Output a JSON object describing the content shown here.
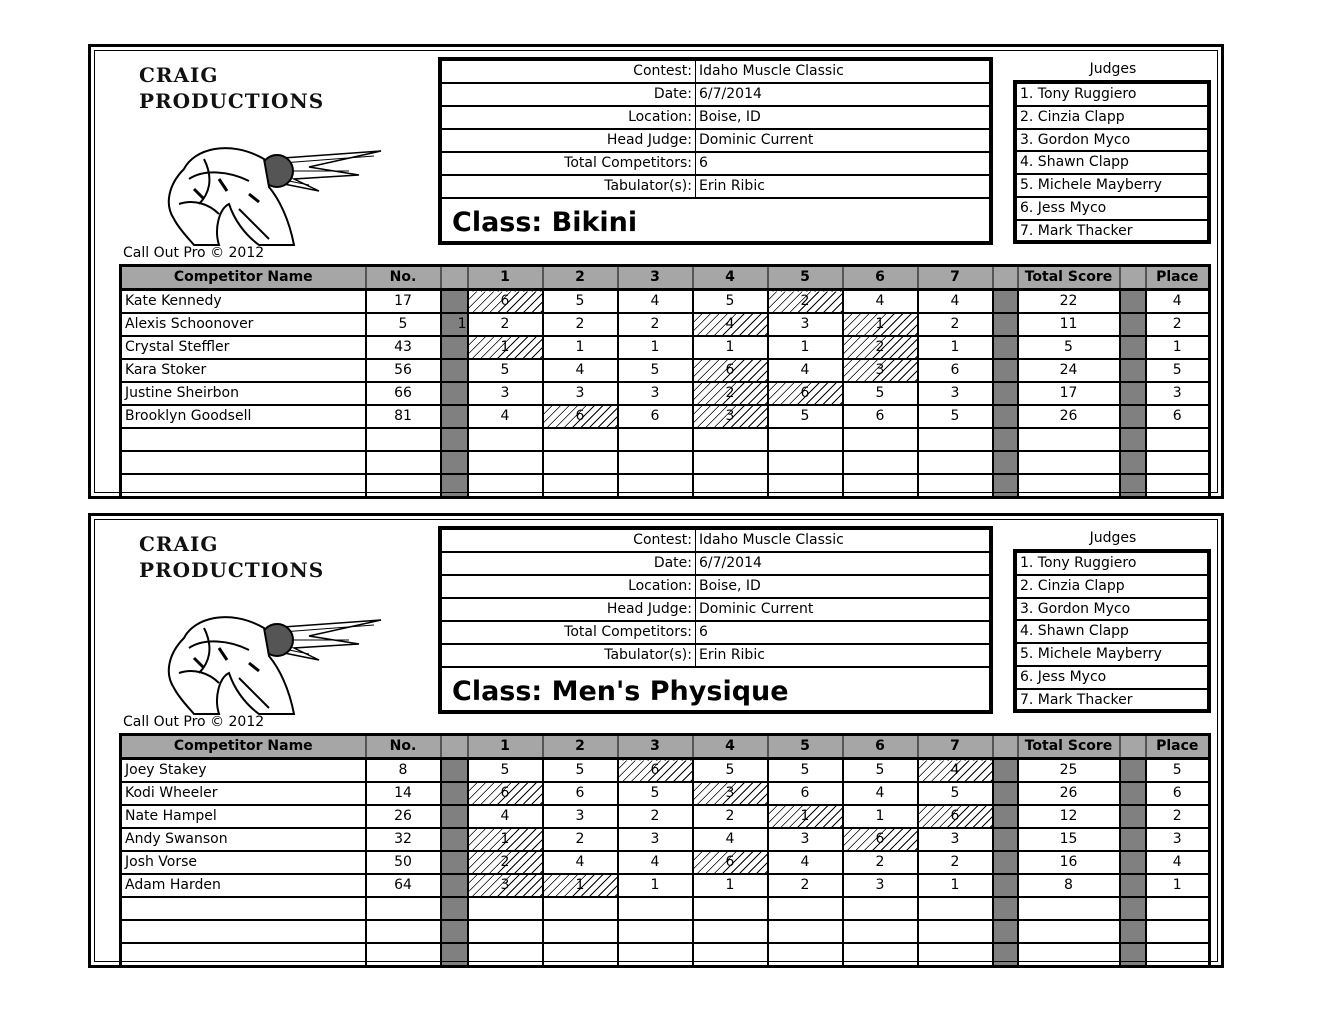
{
  "logo": {
    "line1": "CRAIG",
    "line2": "PRODUCTIONS"
  },
  "copyright": "Call Out Pro © 2012",
  "info_labels": [
    "Contest:",
    "Date:",
    "Location:",
    "Head Judge:",
    "Total Competitors:",
    "Tabulator(s):"
  ],
  "judges_title": "Judges",
  "judges": [
    "1.  Tony Ruggiero",
    "2.  Cinzia Clapp",
    "3.  Gordon Myco",
    "4.  Shawn Clapp",
    "5.  Michele Mayberry",
    "6.  Jess Myco",
    "7.  Mark Thacker"
  ],
  "columns": [
    "Competitor Name",
    "No.",
    "",
    "1",
    "2",
    "3",
    "4",
    "5",
    "6",
    "7",
    "",
    "Total Score",
    "",
    "Place"
  ],
  "sheets": [
    {
      "info_values": [
        "Idaho Muscle Classic",
        "6/7/2014",
        "Boise, ID",
        "Dominic Current",
        "6",
        "Erin Ribic"
      ],
      "class_label": "Class:  Bikini",
      "rows": [
        {
          "name": "Kate Kennedy",
          "no": "17",
          "mark": "",
          "scores": [
            "6",
            "5",
            "4",
            "5",
            "2",
            "4",
            "4"
          ],
          "dropped": [
            0,
            4
          ],
          "total": "22",
          "place": "4"
        },
        {
          "name": "Alexis Schoonover",
          "no": "5",
          "mark": "1",
          "scores": [
            "2",
            "2",
            "2",
            "4",
            "3",
            "1",
            "2"
          ],
          "dropped": [
            3,
            5
          ],
          "total": "11",
          "place": "2"
        },
        {
          "name": "Crystal Steffler",
          "no": "43",
          "mark": "",
          "scores": [
            "1",
            "1",
            "1",
            "1",
            "1",
            "2",
            "1"
          ],
          "dropped": [
            0,
            5
          ],
          "total": "5",
          "place": "1"
        },
        {
          "name": "Kara Stoker",
          "no": "56",
          "mark": "",
          "scores": [
            "5",
            "4",
            "5",
            "6",
            "4",
            "3",
            "6"
          ],
          "dropped": [
            3,
            5
          ],
          "total": "24",
          "place": "5"
        },
        {
          "name": "Justine Sheirbon",
          "no": "66",
          "mark": "",
          "scores": [
            "3",
            "3",
            "3",
            "2",
            "6",
            "5",
            "3"
          ],
          "dropped": [
            3,
            4
          ],
          "total": "17",
          "place": "3"
        },
        {
          "name": "Brooklyn Goodsell",
          "no": "81",
          "mark": "",
          "scores": [
            "4",
            "6",
            "6",
            "3",
            "5",
            "6",
            "5"
          ],
          "dropped": [
            1,
            3
          ],
          "total": "26",
          "place": "6"
        }
      ]
    },
    {
      "info_values": [
        "Idaho Muscle Classic",
        "6/7/2014",
        "Boise, ID",
        "Dominic Current",
        "6",
        "Erin Ribic"
      ],
      "class_label": "Class:  Men's Physique",
      "rows": [
        {
          "name": "Joey Stakey",
          "no": "8",
          "mark": "",
          "scores": [
            "5",
            "5",
            "6",
            "5",
            "5",
            "5",
            "4"
          ],
          "dropped": [
            2,
            6
          ],
          "total": "25",
          "place": "5"
        },
        {
          "name": "Kodi Wheeler",
          "no": "14",
          "mark": "",
          "scores": [
            "6",
            "6",
            "5",
            "3",
            "6",
            "4",
            "5"
          ],
          "dropped": [
            0,
            3
          ],
          "total": "26",
          "place": "6"
        },
        {
          "name": "Nate Hampel",
          "no": "26",
          "mark": "",
          "scores": [
            "4",
            "3",
            "2",
            "2",
            "1",
            "1",
            "6"
          ],
          "dropped": [
            4,
            6
          ],
          "total": "12",
          "place": "2"
        },
        {
          "name": "Andy Swanson",
          "no": "32",
          "mark": "",
          "scores": [
            "1",
            "2",
            "3",
            "4",
            "3",
            "6",
            "3"
          ],
          "dropped": [
            0,
            5
          ],
          "total": "15",
          "place": "3"
        },
        {
          "name": "Josh Vorse",
          "no": "50",
          "mark": "",
          "scores": [
            "2",
            "4",
            "4",
            "6",
            "4",
            "2",
            "2"
          ],
          "dropped": [
            0,
            3
          ],
          "total": "16",
          "place": "4"
        },
        {
          "name": "Adam Harden",
          "no": "64",
          "mark": "",
          "scores": [
            "3",
            "1",
            "1",
            "1",
            "2",
            "3",
            "1"
          ],
          "dropped": [
            0,
            1
          ],
          "total": "8",
          "place": "1"
        }
      ]
    }
  ]
}
